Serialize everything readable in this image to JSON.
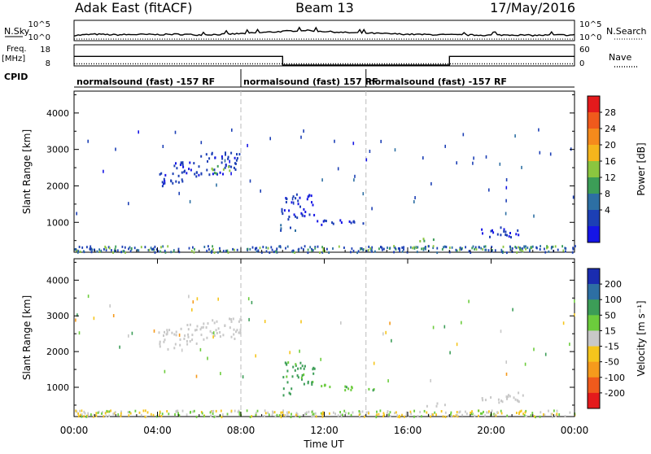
{
  "header": {
    "title": "Adak East (fitACF)",
    "beam": "Beam 13",
    "date": "17/May/2016"
  },
  "nsky": {
    "label": "N.Sky",
    "ticks": [
      "10^5",
      "10^0"
    ],
    "right_label": "N.Search",
    "right_ticks": [
      "10^5",
      "10^0"
    ],
    "profile": [
      [
        0,
        0.25
      ],
      [
        1,
        0.35
      ],
      [
        2,
        0.3
      ],
      [
        3,
        0.33
      ],
      [
        4,
        0.32
      ],
      [
        5,
        0.35
      ],
      [
        6,
        0.3
      ],
      [
        7,
        0.34
      ],
      [
        8,
        0.4
      ],
      [
        9,
        0.5
      ],
      [
        10,
        0.6
      ],
      [
        11,
        0.7
      ],
      [
        12,
        0.6
      ],
      [
        13,
        0.5
      ],
      [
        14,
        0.45
      ],
      [
        15,
        0.4
      ],
      [
        16,
        0.35
      ],
      [
        17,
        0.32
      ],
      [
        18,
        0.3
      ],
      [
        19,
        0.28
      ],
      [
        20,
        0.27
      ],
      [
        21,
        0.3
      ],
      [
        22,
        0.25
      ],
      [
        23,
        0.28
      ],
      [
        24,
        0.28
      ]
    ]
  },
  "freq": {
    "label_top": "Freq.",
    "label_unit": "[MHz]",
    "left_ticks": [
      "18",
      "8"
    ],
    "right_label": "Nave",
    "right_ticks": [
      "60",
      "0"
    ],
    "steps": [
      {
        "from": 0,
        "to": 10,
        "value": 12.5
      },
      {
        "from": 10,
        "to": 18,
        "value": 8.4
      },
      {
        "from": 18,
        "to": 24,
        "value": 12.5
      }
    ],
    "nave": 6
  },
  "cpid": {
    "label": "CPID",
    "segments": [
      {
        "from": 0,
        "to": 8,
        "text": "normalsound (fast) -157 RF"
      },
      {
        "from": 8,
        "to": 14,
        "text": "normalsound (fast) 157 RF"
      },
      {
        "from": 14,
        "to": 24,
        "text": "normalsound (fast) -157 RF"
      }
    ]
  },
  "xaxis": {
    "label": "Time UT",
    "ticks": [
      "00:00",
      "04:00",
      "08:00",
      "12:00",
      "16:00",
      "20:00",
      "00:00"
    ],
    "tick_hours": [
      0,
      4,
      8,
      12,
      16,
      20,
      24
    ]
  },
  "chart_data": [
    {
      "type": "heatmap",
      "name": "power",
      "ylabel": "Slant Range [km]",
      "yticks": [
        1000,
        2000,
        3000,
        4000
      ],
      "ylim": [
        180,
        4600
      ],
      "xlim": [
        0,
        24
      ],
      "dashed_lines_hours": [
        8,
        14
      ],
      "colorbar": {
        "label": "Power [dB]",
        "ticks": [
          "28",
          "24",
          "20",
          "16",
          "12",
          "8",
          "4"
        ],
        "colors": [
          "#e41a1c",
          "#f05a1c",
          "#f58a1c",
          "#f5b51c",
          "#8bc63f",
          "#3c9d57",
          "#2d6fa3",
          "#1c3fb5",
          "#1515e6"
        ]
      },
      "echo_regions": [
        {
          "t0": 4.0,
          "t1": 8.0,
          "r0": 2300,
          "r1": 2900,
          "value": 5,
          "desc": "main band"
        },
        {
          "t0": 6.5,
          "t1": 7.5,
          "r0": 2350,
          "r1": 2600,
          "value": 16
        },
        {
          "t0": 9.8,
          "t1": 10.6,
          "r0": 800,
          "r1": 1000,
          "value": 8
        },
        {
          "t0": 9.9,
          "t1": 11.5,
          "r0": 1100,
          "r1": 1800,
          "value": 4
        },
        {
          "t0": 11.5,
          "t1": 14.5,
          "r0": 950,
          "r1": 1100,
          "value": 5
        },
        {
          "t0": 16.5,
          "t1": 17.8,
          "r0": 480,
          "r1": 580,
          "value": 18
        },
        {
          "t0": 19.5,
          "t1": 21.5,
          "r0": 600,
          "r1": 900,
          "value": 4
        }
      ]
    },
    {
      "type": "heatmap",
      "name": "velocity",
      "ylabel": "Slant Range [km]",
      "yticks": [
        1000,
        2000,
        3000,
        4000
      ],
      "ylim": [
        180,
        4600
      ],
      "xlim": [
        0,
        24
      ],
      "dashed_lines_hours": [
        8,
        14
      ],
      "colorbar": {
        "label": "Velocity [m s⁻¹]",
        "ticks": [
          "200",
          "100",
          "50",
          "15",
          "-15",
          "-50",
          "-100",
          "-200"
        ],
        "colors": [
          "#1a2cb0",
          "#2d6fa3",
          "#3c9d57",
          "#6ccc3c",
          "#c8c8c8",
          "#f5c51c",
          "#f59a1c",
          "#f05a1c",
          "#e41a1c"
        ]
      },
      "echo_regions": [
        {
          "t0": 4.0,
          "t1": 8.0,
          "r0": 2300,
          "r1": 2900,
          "value": 0
        },
        {
          "t0": 9.8,
          "t1": 10.6,
          "r0": 800,
          "r1": 1000,
          "value": 80
        },
        {
          "t0": 10.0,
          "t1": 11.5,
          "r0": 1100,
          "r1": 1800,
          "value": 60
        },
        {
          "t0": 11.5,
          "t1": 14.5,
          "r0": 950,
          "r1": 1100,
          "value": 40
        },
        {
          "t0": 16.5,
          "t1": 17.8,
          "r0": 480,
          "r1": 580,
          "value": 0
        },
        {
          "t0": 19.5,
          "t1": 21.5,
          "r0": 600,
          "r1": 900,
          "value": 0
        }
      ]
    }
  ]
}
